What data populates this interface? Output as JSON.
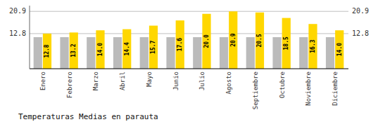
{
  "chart_data": {
    "type": "bar",
    "title": "Temperaturas Medias en parauta",
    "categories": [
      "Enero",
      "Febrero",
      "Marzo",
      "Abril",
      "Mayo",
      "Junio",
      "Julio",
      "Agosto",
      "Septiembre",
      "Octubre",
      "Noviembre",
      "Diciembre"
    ],
    "series": [
      {
        "color": "#BBBBBB",
        "values": [
          11.5,
          11.5,
          11.5,
          11.5,
          11.5,
          11.5,
          11.5,
          11.5,
          11.5,
          11.5,
          11.5,
          11.5
        ]
      },
      {
        "color": "#FFD700",
        "values": [
          12.8,
          13.2,
          14.0,
          14.4,
          15.7,
          17.6,
          20.0,
          20.9,
          20.5,
          18.5,
          16.3,
          14.0
        ],
        "value_labels": [
          "12.8",
          "13.2",
          "14.0",
          "14.4",
          "15.7",
          "17.6",
          "20.0",
          "20.9",
          "20.5",
          "18.5",
          "16.3",
          "14.0"
        ],
        "data_labels": true
      }
    ],
    "ylim": [
      0,
      23.0
    ],
    "yticks": [
      12.8,
      20.9
    ],
    "y2lim": [
      0,
      23.0
    ],
    "y2ticks": [
      12.8,
      20.9
    ],
    "grid": true
  }
}
